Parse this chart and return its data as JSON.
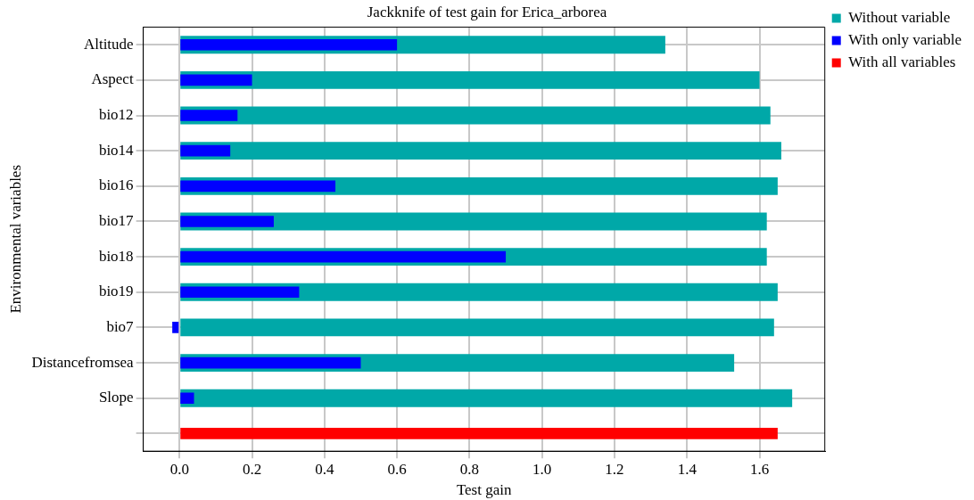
{
  "chart_data": {
    "type": "bar",
    "orientation": "horizontal",
    "title": "Jackknife of test gain for Erica_arborea",
    "xlabel": "Test gain",
    "ylabel": "Environmental variables",
    "categories": [
      "Altitude",
      "Aspect",
      "bio12",
      "bio14",
      "bio16",
      "bio17",
      "bio18",
      "bio19",
      "bio7",
      "Distancefromsea",
      "Slope",
      null
    ],
    "series": [
      {
        "name": "Without variable",
        "color": "#00a8a8",
        "values": [
          1.34,
          1.6,
          1.63,
          1.66,
          1.65,
          1.62,
          1.62,
          1.65,
          1.64,
          1.53,
          1.69,
          null
        ]
      },
      {
        "name": "With only variable",
        "color": "#0000ff",
        "values": [
          0.6,
          0.2,
          0.16,
          0.14,
          0.43,
          0.26,
          0.9,
          0.33,
          -0.02,
          0.5,
          0.04,
          null
        ]
      },
      {
        "name": "With all variables",
        "color": "#ff0000",
        "values": [
          null,
          null,
          null,
          null,
          null,
          null,
          null,
          null,
          null,
          null,
          null,
          1.65
        ]
      }
    ],
    "xlim": [
      -0.1,
      1.78
    ],
    "xticks": [
      {
        "value": 0,
        "label": "0.0"
      },
      {
        "value": 0.2,
        "label": "0.2"
      },
      {
        "value": 0.4,
        "label": "0.4"
      },
      {
        "value": 0.6,
        "label": "0.6"
      },
      {
        "value": 0.8,
        "label": "0.8"
      },
      {
        "value": 1,
        "label": "1.0"
      },
      {
        "value": 1.2,
        "label": "1.2"
      },
      {
        "value": 1.4,
        "label": "1.4"
      },
      {
        "value": 1.6,
        "label": "1.6"
      }
    ],
    "grid": true,
    "legend": "top right"
  }
}
